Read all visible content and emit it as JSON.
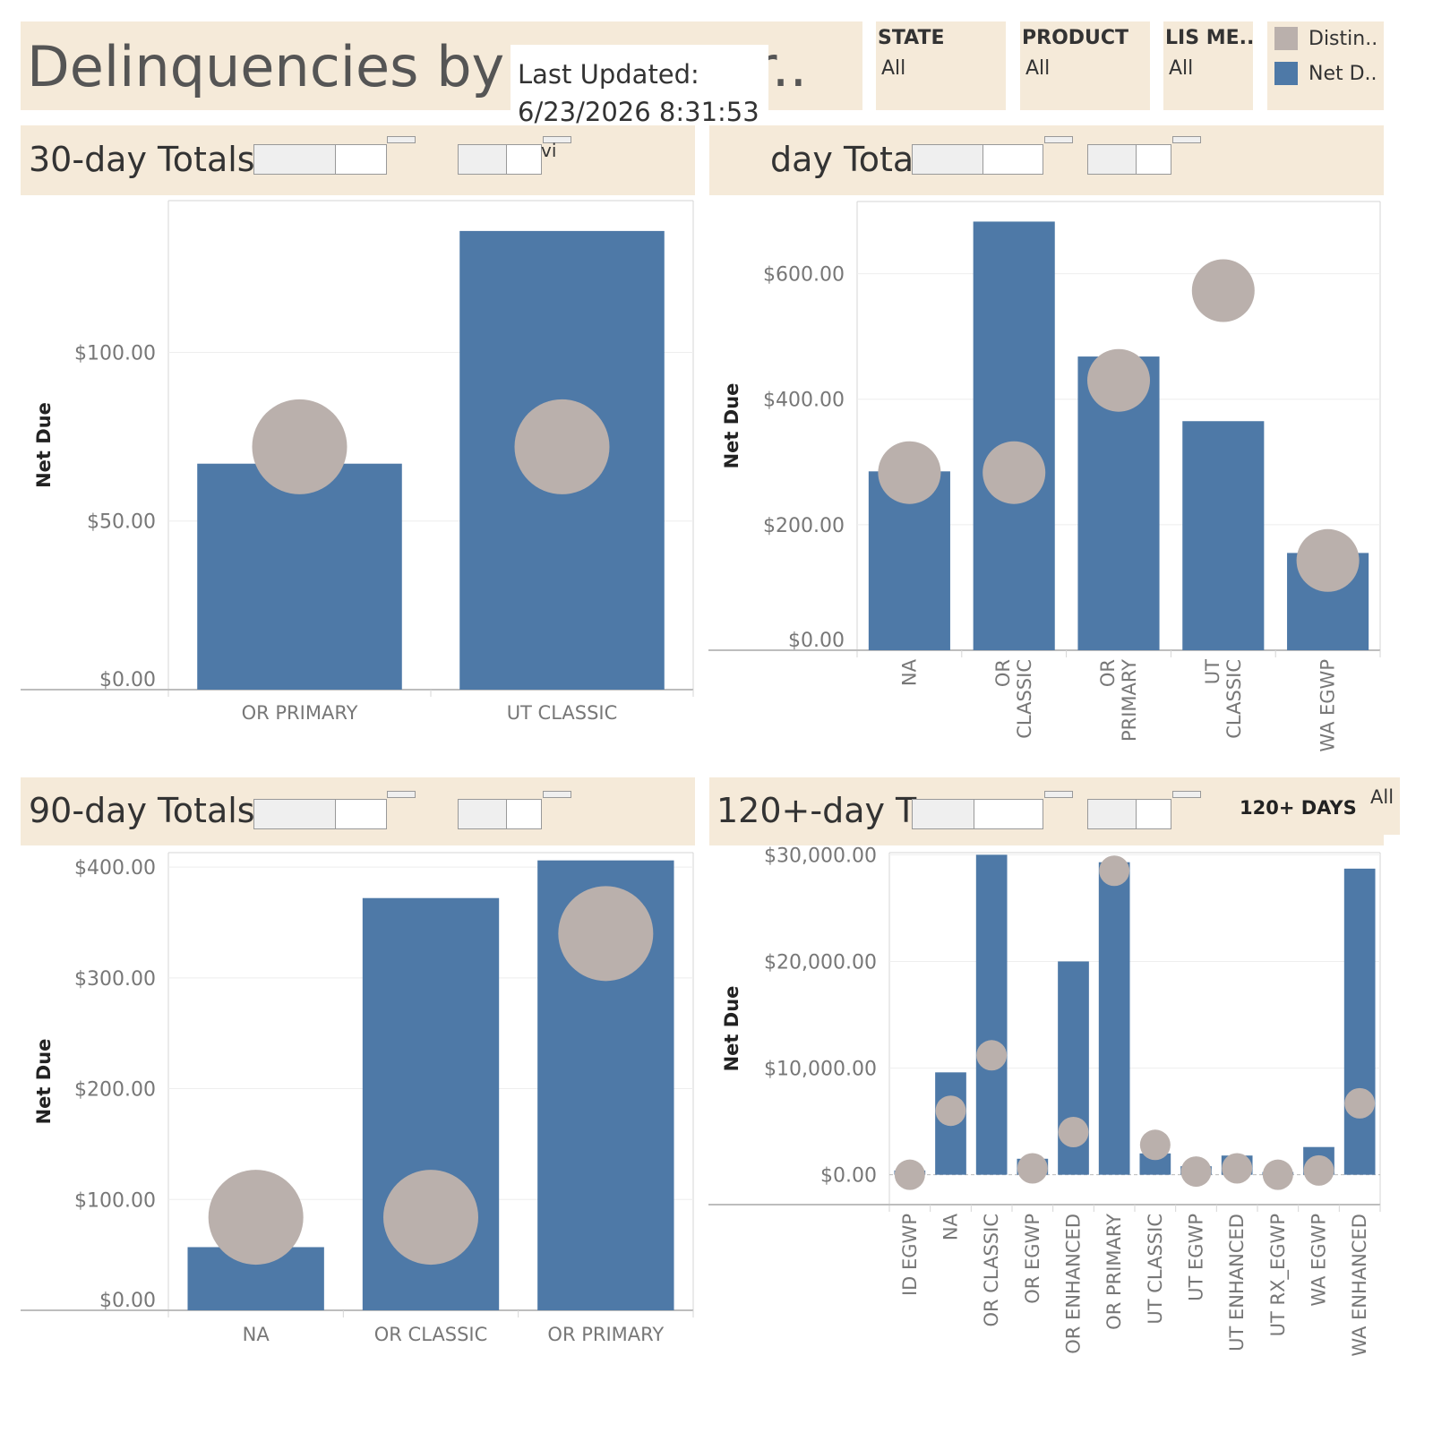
{
  "dashboard": {
    "title": "Delinquencies by T",
    "title_tail": "r..",
    "updated_label": "Last Updated:",
    "updated_value": "6/23/2026 8:31:53"
  },
  "filters": [
    {
      "header": "STATE",
      "value": "All"
    },
    {
      "header": "PRODUCT",
      "value": "All"
    },
    {
      "header": "LIS ME..",
      "value": "All"
    }
  ],
  "legend": [
    {
      "label": "Distin..",
      "color": "#bab0ac"
    },
    {
      "label": "Net D..",
      "color": "#4e79a7"
    }
  ],
  "colors": {
    "bar": "#4e79a7",
    "circle": "#bab0ac",
    "band": "#f5ead9"
  },
  "panels": {
    "p30": {
      "title": "30-day Totals",
      "overlay_text": "vi"
    },
    "p60": {
      "title": "day Tota"
    },
    "p90": {
      "title": "90-day Totals"
    },
    "p120": {
      "title": "120+-day To",
      "days_label": "120+ DAYS",
      "all_label": "All"
    }
  },
  "chart_data": [
    {
      "id": "c30",
      "type": "bar",
      "ylabel": "Net Due",
      "ylim": [
        0,
        145
      ],
      "yticks": [
        0,
        50,
        100
      ],
      "ytick_labels": [
        "$0.00",
        "$50.00",
        "$100.00"
      ],
      "grid": true,
      "categories": [
        "OR PRIMARY",
        "UT CLASSIC"
      ],
      "cat_lines": [
        [
          "OR PRIMARY"
        ],
        [
          "UT CLASSIC"
        ]
      ],
      "series": [
        {
          "name": "Net D..",
          "values": [
            67,
            136
          ]
        },
        {
          "name": "Distin..",
          "mark": "circle",
          "values": [
            72,
            72
          ]
        }
      ]
    },
    {
      "id": "c60",
      "type": "bar",
      "ylabel": "Net Due",
      "ylim": [
        0,
        715
      ],
      "yticks": [
        0,
        200,
        400,
        600
      ],
      "ytick_labels": [
        "$0.00",
        "$200.00",
        "$400.00",
        "$600.00"
      ],
      "grid": true,
      "categories": [
        "NA",
        "OR CLASSIC",
        "OR PRIMARY",
        "UT CLASSIC",
        "WA EGWP"
      ],
      "cat_lines": [
        [
          "NA"
        ],
        [
          "OR",
          "CLASSIC"
        ],
        [
          "OR",
          "PRIMARY"
        ],
        [
          "UT",
          "CLASSIC"
        ],
        [
          "WA EGWP"
        ]
      ],
      "series": [
        {
          "name": "Net D..",
          "values": [
            285,
            683,
            468,
            365,
            155
          ]
        },
        {
          "name": "Distin..",
          "mark": "circle",
          "values": [
            283,
            283,
            430,
            573,
            143
          ]
        }
      ]
    },
    {
      "id": "c90",
      "type": "bar",
      "ylabel": "Net Due",
      "ylim": [
        0,
        413
      ],
      "yticks": [
        0,
        100,
        200,
        300,
        400
      ],
      "ytick_labels": [
        "$0.00",
        "$100.00",
        "$200.00",
        "$300.00",
        "$400.00"
      ],
      "grid": true,
      "categories": [
        "NA",
        "OR CLASSIC",
        "OR PRIMARY"
      ],
      "cat_lines": [
        [
          "NA"
        ],
        [
          "OR CLASSIC"
        ],
        [
          "OR PRIMARY"
        ]
      ],
      "series": [
        {
          "name": "Net D..",
          "values": [
            57,
            372,
            406
          ]
        },
        {
          "name": "Distin..",
          "mark": "circle",
          "values": [
            84,
            84,
            340
          ]
        }
      ]
    },
    {
      "id": "c120",
      "type": "bar",
      "ylabel": "Net Due",
      "ylim": [
        -2800,
        30200
      ],
      "yticks": [
        0,
        10000,
        20000,
        30000
      ],
      "ytick_labels": [
        "$0.00",
        "$10,000.00",
        "$20,000.00",
        "$30,000.00"
      ],
      "grid": true,
      "categories": [
        "ID EGWP",
        "NA",
        "OR CLASSIC",
        "OR EGWP",
        "OR ENHANCED",
        "OR PRIMARY",
        "UT CLASSIC",
        "UT EGWP",
        "UT ENHANCED",
        "UT RX_EGWP",
        "WA EGWP",
        "WA ENHANCED"
      ],
      "cat_lines": [
        [
          "ID EGWP"
        ],
        [
          "NA"
        ],
        [
          "OR CLASSIC"
        ],
        [
          "OR EGWP"
        ],
        [
          "OR ENHANCED"
        ],
        [
          "OR PRIMARY"
        ],
        [
          "UT CLASSIC"
        ],
        [
          "UT EGWP"
        ],
        [
          "UT ENHANCED"
        ],
        [
          "UT RX_EGWP"
        ],
        [
          "WA EGWP"
        ],
        [
          "WA ENHANCED"
        ]
      ],
      "series": [
        {
          "name": "Net D..",
          "values": [
            400,
            9600,
            30000,
            1500,
            20000,
            29300,
            2000,
            800,
            1800,
            250,
            2600,
            28700
          ]
        },
        {
          "name": "Distin..",
          "mark": "circle",
          "values": [
            0,
            6000,
            11200,
            600,
            4000,
            28500,
            2800,
            300,
            600,
            0,
            400,
            6700
          ]
        }
      ]
    }
  ]
}
